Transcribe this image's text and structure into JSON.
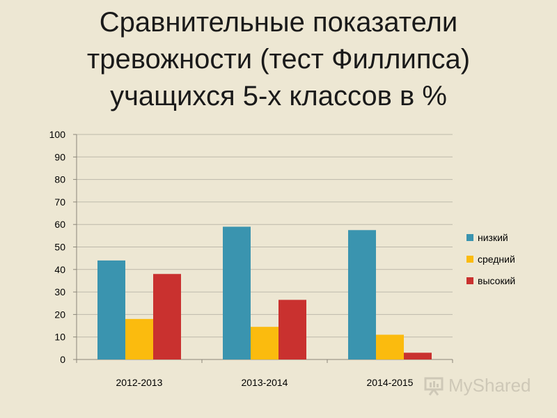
{
  "title_lines": [
    "Сравнительные показатели",
    "тревожности (тест Филлипса)",
    "учащихся 5-х классов в %"
  ],
  "watermark": {
    "text": "MyShared",
    "icon": "presentation-board-icon"
  },
  "chart_data": {
    "type": "bar",
    "title": "Сравнительные показатели тревожности (тест Филлипса) учащихся 5-х классов в %",
    "categories": [
      "2012-2013",
      "2013-2014",
      "2014-2015"
    ],
    "series": [
      {
        "name": "низкий",
        "values": [
          44,
          59,
          57.5
        ],
        "color": "#3a94af"
      },
      {
        "name": "средний",
        "values": [
          18,
          14.5,
          11
        ],
        "color": "#fbbb0e"
      },
      {
        "name": "высокий",
        "values": [
          38,
          26.5,
          3
        ],
        "color": "#c9312f"
      }
    ],
    "ylim": [
      0,
      100
    ],
    "yticks": [
      0,
      10,
      20,
      30,
      40,
      50,
      60,
      70,
      80,
      90,
      100
    ],
    "grid": true,
    "legend": "right"
  }
}
